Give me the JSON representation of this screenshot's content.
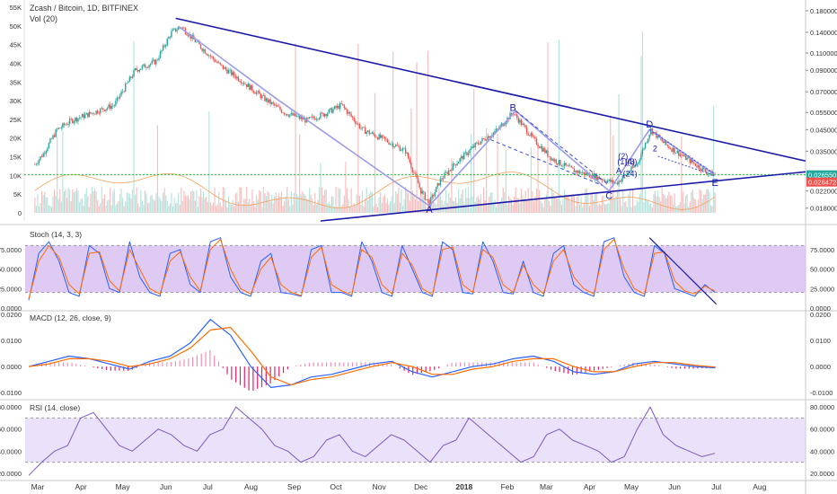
{
  "header": {
    "symbol_title": "Zcash / Bitcoin, 1D, BITFINEX",
    "volume_title": "Vol (20)",
    "stoch_title": "Stoch (14, 3, 3)",
    "macd_title": "MACD (12, 26, close, 9)",
    "rsi_title": "RSI (14, close)"
  },
  "chart_data": [
    {
      "type": "candlestick",
      "pane": "price",
      "series_name": "Zcash / Bitcoin, 1D, BITFINEX",
      "y_scale": "log",
      "ylim": [
        0.0155,
        0.2
      ],
      "y_ticks": [
        "0.180000",
        "0.140000",
        "0.110000",
        "0.090000",
        "0.070000",
        "0.055000",
        "0.045000",
        "0.035000",
        "0.022000",
        "0.018000"
      ],
      "x_ticks": [
        "Mar",
        "Apr",
        "May",
        "Jun",
        "Jul",
        "Aug",
        "Sep",
        "Oct",
        "Nov",
        "Dec",
        "2018",
        "Feb",
        "Mar",
        "Apr",
        "May",
        "Jun",
        "Jul",
        "Aug"
      ],
      "close_path": [
        {
          "x": "2017-02-27",
          "y": 0.03
        },
        {
          "x": "2017-03-05",
          "y": 0.034
        },
        {
          "x": "2017-03-15",
          "y": 0.045
        },
        {
          "x": "2017-03-25",
          "y": 0.05
        },
        {
          "x": "2017-04-10",
          "y": 0.055
        },
        {
          "x": "2017-04-25",
          "y": 0.06
        },
        {
          "x": "2017-05-10",
          "y": 0.09
        },
        {
          "x": "2017-05-25",
          "y": 0.1
        },
        {
          "x": "2017-06-05",
          "y": 0.14
        },
        {
          "x": "2017-06-12",
          "y": 0.15
        },
        {
          "x": "2017-06-25",
          "y": 0.12
        },
        {
          "x": "2017-07-10",
          "y": 0.095
        },
        {
          "x": "2017-07-25",
          "y": 0.08
        },
        {
          "x": "2017-08-10",
          "y": 0.065
        },
        {
          "x": "2017-08-25",
          "y": 0.055
        },
        {
          "x": "2017-09-10",
          "y": 0.05
        },
        {
          "x": "2017-09-25",
          "y": 0.055
        },
        {
          "x": "2017-10-05",
          "y": 0.06
        },
        {
          "x": "2017-10-20",
          "y": 0.045
        },
        {
          "x": "2017-11-05",
          "y": 0.04
        },
        {
          "x": "2017-11-20",
          "y": 0.035
        },
        {
          "x": "2017-12-01",
          "y": 0.022
        },
        {
          "x": "2017-12-07",
          "y": 0.019
        },
        {
          "x": "2017-12-15",
          "y": 0.025
        },
        {
          "x": "2017-12-25",
          "y": 0.03
        },
        {
          "x": "2018-01-10",
          "y": 0.038
        },
        {
          "x": "2018-01-25",
          "y": 0.045
        },
        {
          "x": "2018-02-05",
          "y": 0.055
        },
        {
          "x": "2018-02-20",
          "y": 0.04
        },
        {
          "x": "2018-03-05",
          "y": 0.032
        },
        {
          "x": "2018-03-20",
          "y": 0.028
        },
        {
          "x": "2018-04-05",
          "y": 0.026
        },
        {
          "x": "2018-04-20",
          "y": 0.024
        },
        {
          "x": "2018-05-05",
          "y": 0.03
        },
        {
          "x": "2018-05-15",
          "y": 0.045
        },
        {
          "x": "2018-05-25",
          "y": 0.038
        },
        {
          "x": "2018-06-10",
          "y": 0.032
        },
        {
          "x": "2018-06-25",
          "y": 0.0272
        },
        {
          "x": "2018-06-30",
          "y": 0.0266
        }
      ],
      "price_labels": [
        {
          "text": "0.026550",
          "y": 0.02655,
          "color": "#26a69a"
        },
        {
          "text": "0.026472",
          "y": 0.0244,
          "color": "#ef5350"
        }
      ],
      "support_line_y": 0.0266
    },
    {
      "type": "bar",
      "pane": "volume",
      "name": "Vol (20)",
      "ylim": [
        0,
        55000
      ],
      "y_ticks": [
        "55K",
        "50K",
        "45K",
        "40K",
        "35K",
        "30K",
        "25K",
        "20K",
        "15K",
        "10K",
        "5K",
        "0"
      ]
    },
    {
      "type": "line",
      "pane": "stoch",
      "name": "Stoch (14, 3, 3)",
      "ylim": [
        0,
        100
      ],
      "bands": [
        20,
        80
      ],
      "y_ticks": [
        "75.0000",
        "50.0000",
        "25.0000",
        "0.0000"
      ],
      "series": [
        {
          "name": "%K",
          "color": "#2962ff",
          "values": [
            10,
            70,
            85,
            60,
            20,
            15,
            80,
            70,
            25,
            20,
            85,
            40,
            20,
            15,
            70,
            75,
            30,
            20,
            85,
            90,
            40,
            20,
            15,
            60,
            70,
            20,
            18,
            15,
            75,
            80,
            20,
            20,
            15,
            85,
            60,
            20,
            15,
            80,
            50,
            20,
            15,
            85,
            75,
            20,
            18,
            85,
            60,
            20,
            18,
            60,
            20,
            15,
            70,
            80,
            30,
            20,
            15,
            85,
            90,
            40,
            20,
            15,
            80,
            70,
            25,
            20,
            15,
            30,
            20
          ]
        },
        {
          "name": "%D",
          "color": "#ff6d00",
          "values": [
            12,
            60,
            80,
            65,
            30,
            18,
            70,
            72,
            35,
            22,
            75,
            50,
            25,
            18,
            60,
            72,
            40,
            22,
            75,
            88,
            50,
            25,
            18,
            50,
            65,
            30,
            20,
            16,
            65,
            78,
            30,
            22,
            17,
            75,
            65,
            30,
            18,
            70,
            55,
            25,
            17,
            75,
            78,
            30,
            20,
            75,
            65,
            30,
            20,
            55,
            30,
            18,
            60,
            75,
            40,
            25,
            18,
            75,
            88,
            50,
            25,
            18,
            70,
            72,
            35,
            22,
            18,
            28,
            22
          ]
        }
      ]
    },
    {
      "type": "line",
      "pane": "macd",
      "name": "MACD (12, 26, close, 9)",
      "ylim": [
        -0.012,
        0.021
      ],
      "y_ticks": [
        "0.0200",
        "0.0100",
        "0.0000",
        "-0.0100"
      ],
      "series": [
        {
          "name": "MACD",
          "color": "#2962ff",
          "values": [
            0,
            0.002,
            0.004,
            0.003,
            0.001,
            -0.001,
            0.002,
            0.004,
            0.009,
            0.018,
            0.012,
            0.0,
            -0.008,
            -0.007,
            -0.004,
            -0.003,
            -0.001,
            0.001,
            0.002,
            -0.002,
            -0.004,
            -0.002,
            0.0,
            0.001,
            0.003,
            0.004,
            0.002,
            -0.002,
            -0.003,
            -0.002,
            0.001,
            0.002,
            0.001,
            0.0,
            -0.0005
          ]
        },
        {
          "name": "Signal",
          "color": "#ff6d00",
          "values": [
            0,
            0.001,
            0.003,
            0.003,
            0.002,
            0.0,
            0.001,
            0.003,
            0.007,
            0.014,
            0.015,
            0.006,
            -0.004,
            -0.007,
            -0.005,
            -0.004,
            -0.002,
            0.0,
            0.0015,
            0.0,
            -0.003,
            -0.003,
            -0.001,
            0.0,
            0.002,
            0.003,
            0.003,
            0.0,
            -0.002,
            -0.002,
            0.0,
            0.0015,
            0.0015,
            0.0005,
            -0.0002
          ]
        }
      ]
    },
    {
      "type": "line",
      "pane": "rsi",
      "name": "RSI (14, close)",
      "ylim": [
        15,
        85
      ],
      "bands": [
        30,
        70
      ],
      "y_ticks": [
        "80.0000",
        "60.0000",
        "40.0000",
        "20.0000"
      ],
      "series": [
        {
          "name": "RSI",
          "color": "#7e57c2",
          "values": [
            18,
            30,
            40,
            45,
            70,
            75,
            60,
            45,
            40,
            50,
            60,
            55,
            45,
            40,
            55,
            60,
            80,
            70,
            60,
            45,
            40,
            30,
            35,
            50,
            55,
            40,
            35,
            45,
            55,
            50,
            40,
            30,
            45,
            50,
            70,
            60,
            50,
            40,
            30,
            35,
            55,
            60,
            50,
            45,
            40,
            30,
            35,
            60,
            80,
            55,
            45,
            40,
            35,
            38
          ]
        }
      ]
    }
  ],
  "annotations": {
    "wave_labels": [
      {
        "label": "A",
        "date": "2017-12-07",
        "y": 0.017
      },
      {
        "label": "B",
        "date": "2018-02-05",
        "y": 0.056
      },
      {
        "label": "C",
        "date": "2018-04-15",
        "y": 0.02
      },
      {
        "label": "D",
        "date": "2018-05-14",
        "y": 0.046
      },
      {
        "label": "E",
        "date": "2018-06-30",
        "y": 0.0233
      }
    ],
    "sub_wave_labels": [
      {
        "label": "(2)",
        "date": "2018-04-25",
        "y": 0.032
      },
      {
        "label": "(4)",
        "date": "2018-04-30",
        "y": 0.03
      },
      {
        "label": "(1)(3)",
        "date": "2018-04-28",
        "y": 0.03
      },
      {
        "label": "(24)",
        "date": "2018-04-30",
        "y": 0.026
      },
      {
        "label": "A",
        "date": "2018-04-22",
        "y": 0.027
      },
      {
        "label": "2",
        "date": "2018-05-18",
        "y": 0.035
      }
    ]
  },
  "colors": {
    "up": "#26a69a",
    "down": "#ef5350",
    "trendline": "#1a1aaa",
    "wave": "#9b9be8",
    "support": "#2ecc40",
    "band_fill": "#d9c8f5",
    "stoch_band_fill": "#d4b8f0"
  }
}
